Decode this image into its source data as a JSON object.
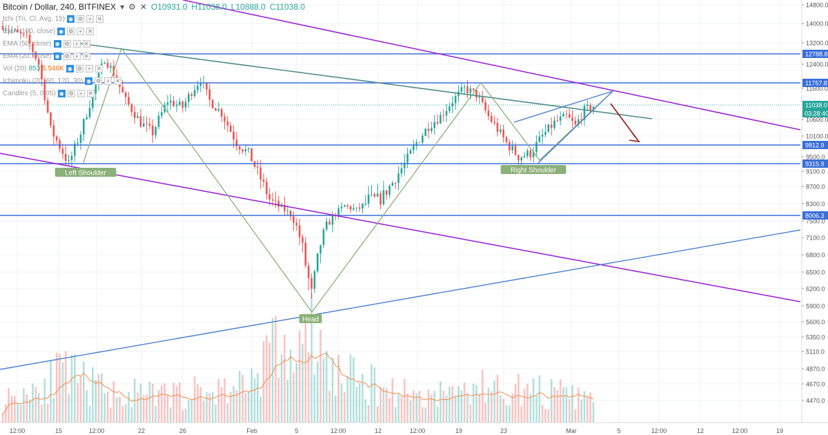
{
  "header": {
    "symbol": "Bitcoin / Dollar, 240, BITFINEX",
    "open": "O10931.0",
    "high": "H11038.0",
    "low": "L10888.0",
    "close": "C11038.0"
  },
  "indicators": [
    {
      "label": "Ichi (Tri, Cl, Avg, 15)",
      "values": []
    },
    {
      "label": "EMA (100, close)",
      "values": []
    },
    {
      "label": "EMA (50, close)",
      "values": []
    },
    {
      "label": "EMA (20, close)",
      "values": []
    },
    {
      "label": "Vol (20)",
      "values": [
        "853",
        "5.546K"
      ]
    },
    {
      "label": "Ichimoku (20, 60, 120, 30)",
      "values": []
    },
    {
      "label": "Candles (5, 0.05)",
      "values": []
    }
  ],
  "colors": {
    "up": "#26a69a",
    "down": "#ef5350",
    "horizontal_level": "#3a6fd8",
    "purple_channel": "#9c27d6",
    "trend_blue": "#4a7fd0",
    "teal_line": "#4e8a8a",
    "hs_pattern": "#8bb078",
    "arrow": "#8b1a1a",
    "volume_ma": "#f28c4b"
  },
  "chart_data": {
    "type": "candlestick",
    "title": "Bitcoin / Dollar, 240, BITFINEX",
    "price_axis_ticks": [
      14800,
      14000,
      13200,
      12400,
      11600,
      10600,
      10100,
      9500,
      9100,
      8700,
      8300,
      7500,
      7100,
      6800,
      6500,
      6200,
      5900,
      5600,
      5350,
      5110,
      4870,
      4670,
      4470
    ],
    "price_axis_labels": [
      "14800.0",
      "14000.0",
      "13200.0",
      "12400.0",
      "11600.0",
      "10600.0",
      "10100.0",
      "9500.0",
      "9100.0",
      "8700.0",
      "8300.0",
      "7500.0",
      "7100.0",
      "6800.0",
      "6500.0",
      "6200.0",
      "5900.0",
      "5600.0",
      "5350.0",
      "5110.0",
      "4870.0",
      "4670.0",
      "4470.0"
    ],
    "time_axis_labels": [
      "12:00",
      "15",
      "12:00",
      "22",
      "26",
      "Feb",
      "5",
      "12:00",
      "12",
      "12:00",
      "19",
      "23",
      "Mar",
      "5",
      "12:00",
      "12",
      "12:00",
      "19"
    ],
    "horizontal_levels": [
      12788.8,
      11757.8,
      9812.9,
      9315.9,
      8006.3
    ],
    "level_labels": [
      "12788.8",
      "11757.8",
      "9812.9",
      "9315.9",
      "8006.3"
    ],
    "last_price": "11038.0",
    "countdown": "03:28:40",
    "pattern_labels": [
      "Left Shoulder",
      "Head",
      "Right Shoulder"
    ],
    "candle_path": [
      [
        0,
        13900
      ],
      [
        8,
        13400
      ],
      [
        12,
        12400
      ],
      [
        16,
        10300
      ],
      [
        22,
        9300
      ],
      [
        26,
        10200
      ],
      [
        30,
        11400
      ],
      [
        34,
        12600
      ],
      [
        37,
        12100
      ],
      [
        41,
        11200
      ],
      [
        46,
        10500
      ],
      [
        50,
        10200
      ],
      [
        55,
        11200
      ],
      [
        60,
        11000
      ],
      [
        63,
        11500
      ],
      [
        66,
        11900
      ],
      [
        69,
        11200
      ],
      [
        73,
        10800
      ],
      [
        78,
        9900
      ],
      [
        82,
        9600
      ],
      [
        86,
        8900
      ],
      [
        89,
        8400
      ],
      [
        93,
        8100
      ],
      [
        96,
        7800
      ],
      [
        100,
        6900
      ],
      [
        103,
        6100
      ],
      [
        106,
        7000
      ],
      [
        110,
        7700
      ],
      [
        114,
        8200
      ],
      [
        118,
        8000
      ],
      [
        122,
        8400
      ],
      [
        126,
        8400
      ],
      [
        130,
        8800
      ],
      [
        134,
        9300
      ],
      [
        138,
        9900
      ],
      [
        142,
        10400
      ],
      [
        146,
        10700
      ],
      [
        150,
        11200
      ],
      [
        154,
        11600
      ],
      [
        158,
        11400
      ],
      [
        162,
        10700
      ],
      [
        165,
        10300
      ],
      [
        168,
        9900
      ],
      [
        172,
        9500
      ],
      [
        176,
        9600
      ],
      [
        180,
        10100
      ],
      [
        184,
        10500
      ],
      [
        188,
        10700
      ],
      [
        191,
        10400
      ],
      [
        194,
        10900
      ],
      [
        197,
        11038
      ]
    ],
    "volume_profile": [
      [
        0,
        0.25
      ],
      [
        20,
        0.55
      ],
      [
        35,
        0.35
      ],
      [
        50,
        0.3
      ],
      [
        70,
        0.35
      ],
      [
        82,
        0.45
      ],
      [
        90,
        0.85
      ],
      [
        98,
        0.7
      ],
      [
        103,
        1.0
      ],
      [
        108,
        0.6
      ],
      [
        120,
        0.45
      ],
      [
        140,
        0.3
      ],
      [
        160,
        0.4
      ],
      [
        180,
        0.35
      ],
      [
        197,
        0.25
      ]
    ]
  }
}
